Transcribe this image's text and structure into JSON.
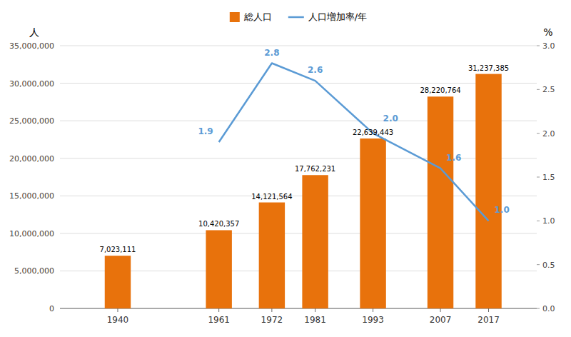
{
  "chart_data": {
    "type": "bar",
    "x": [
      1940,
      1961,
      1972,
      1981,
      1993,
      2007,
      2017
    ],
    "xlim": [
      1928,
      2027
    ],
    "xticks": [
      1940,
      1961,
      1972,
      1981,
      1993,
      2007,
      2017
    ],
    "ylim": [
      0,
      35000000
    ],
    "yticks": [
      0,
      {
        "value": 5000000,
        "label": "5,000,000"
      },
      {
        "value": 10000000,
        "label": "10,000,000"
      },
      {
        "value": 15000000,
        "label": "15,000,000"
      },
      {
        "value": 20000000,
        "label": "20,000,000"
      },
      {
        "value": 25000000,
        "label": "25,000,000"
      },
      {
        "value": 30000000,
        "label": "30,000,000"
      },
      {
        "value": 35000000,
        "label": "35,000,000"
      }
    ],
    "y2lim": [
      0.0,
      3.0
    ],
    "y2ticks": [
      {
        "value": 0.0,
        "label": "0.0"
      },
      0.5,
      {
        "value": 1.0,
        "label": "1.0"
      },
      1.5,
      {
        "value": 2.0,
        "label": "2.0"
      },
      2.5,
      {
        "value": 3.0,
        "label": "3.0"
      }
    ],
    "y_label": "人",
    "y2_label": "%",
    "grid": true,
    "legend": "top",
    "data_labels": true,
    "series": [
      {
        "name": "総人口",
        "type": "bar",
        "color": "#E8720C",
        "values": [
          7023111,
          10420357,
          14121564,
          17762231,
          22639443,
          28220764,
          31237385
        ],
        "value_labels": [
          "7,023,111",
          "10,420,357",
          "14,121,564",
          "17,762,231",
          "22,639,443",
          "28,220,764",
          "31,237,385"
        ]
      },
      {
        "name": "人口増加率/年",
        "type": "line",
        "color": "#5B9BD5",
        "axis": "y2",
        "values": [
          null,
          1.9,
          2.8,
          2.6,
          2.0,
          1.6,
          1.0
        ],
        "value_labels": [
          null,
          "1.9",
          "2.8",
          "2.6",
          "2.0",
          "1.6",
          "1.0"
        ]
      }
    ]
  }
}
